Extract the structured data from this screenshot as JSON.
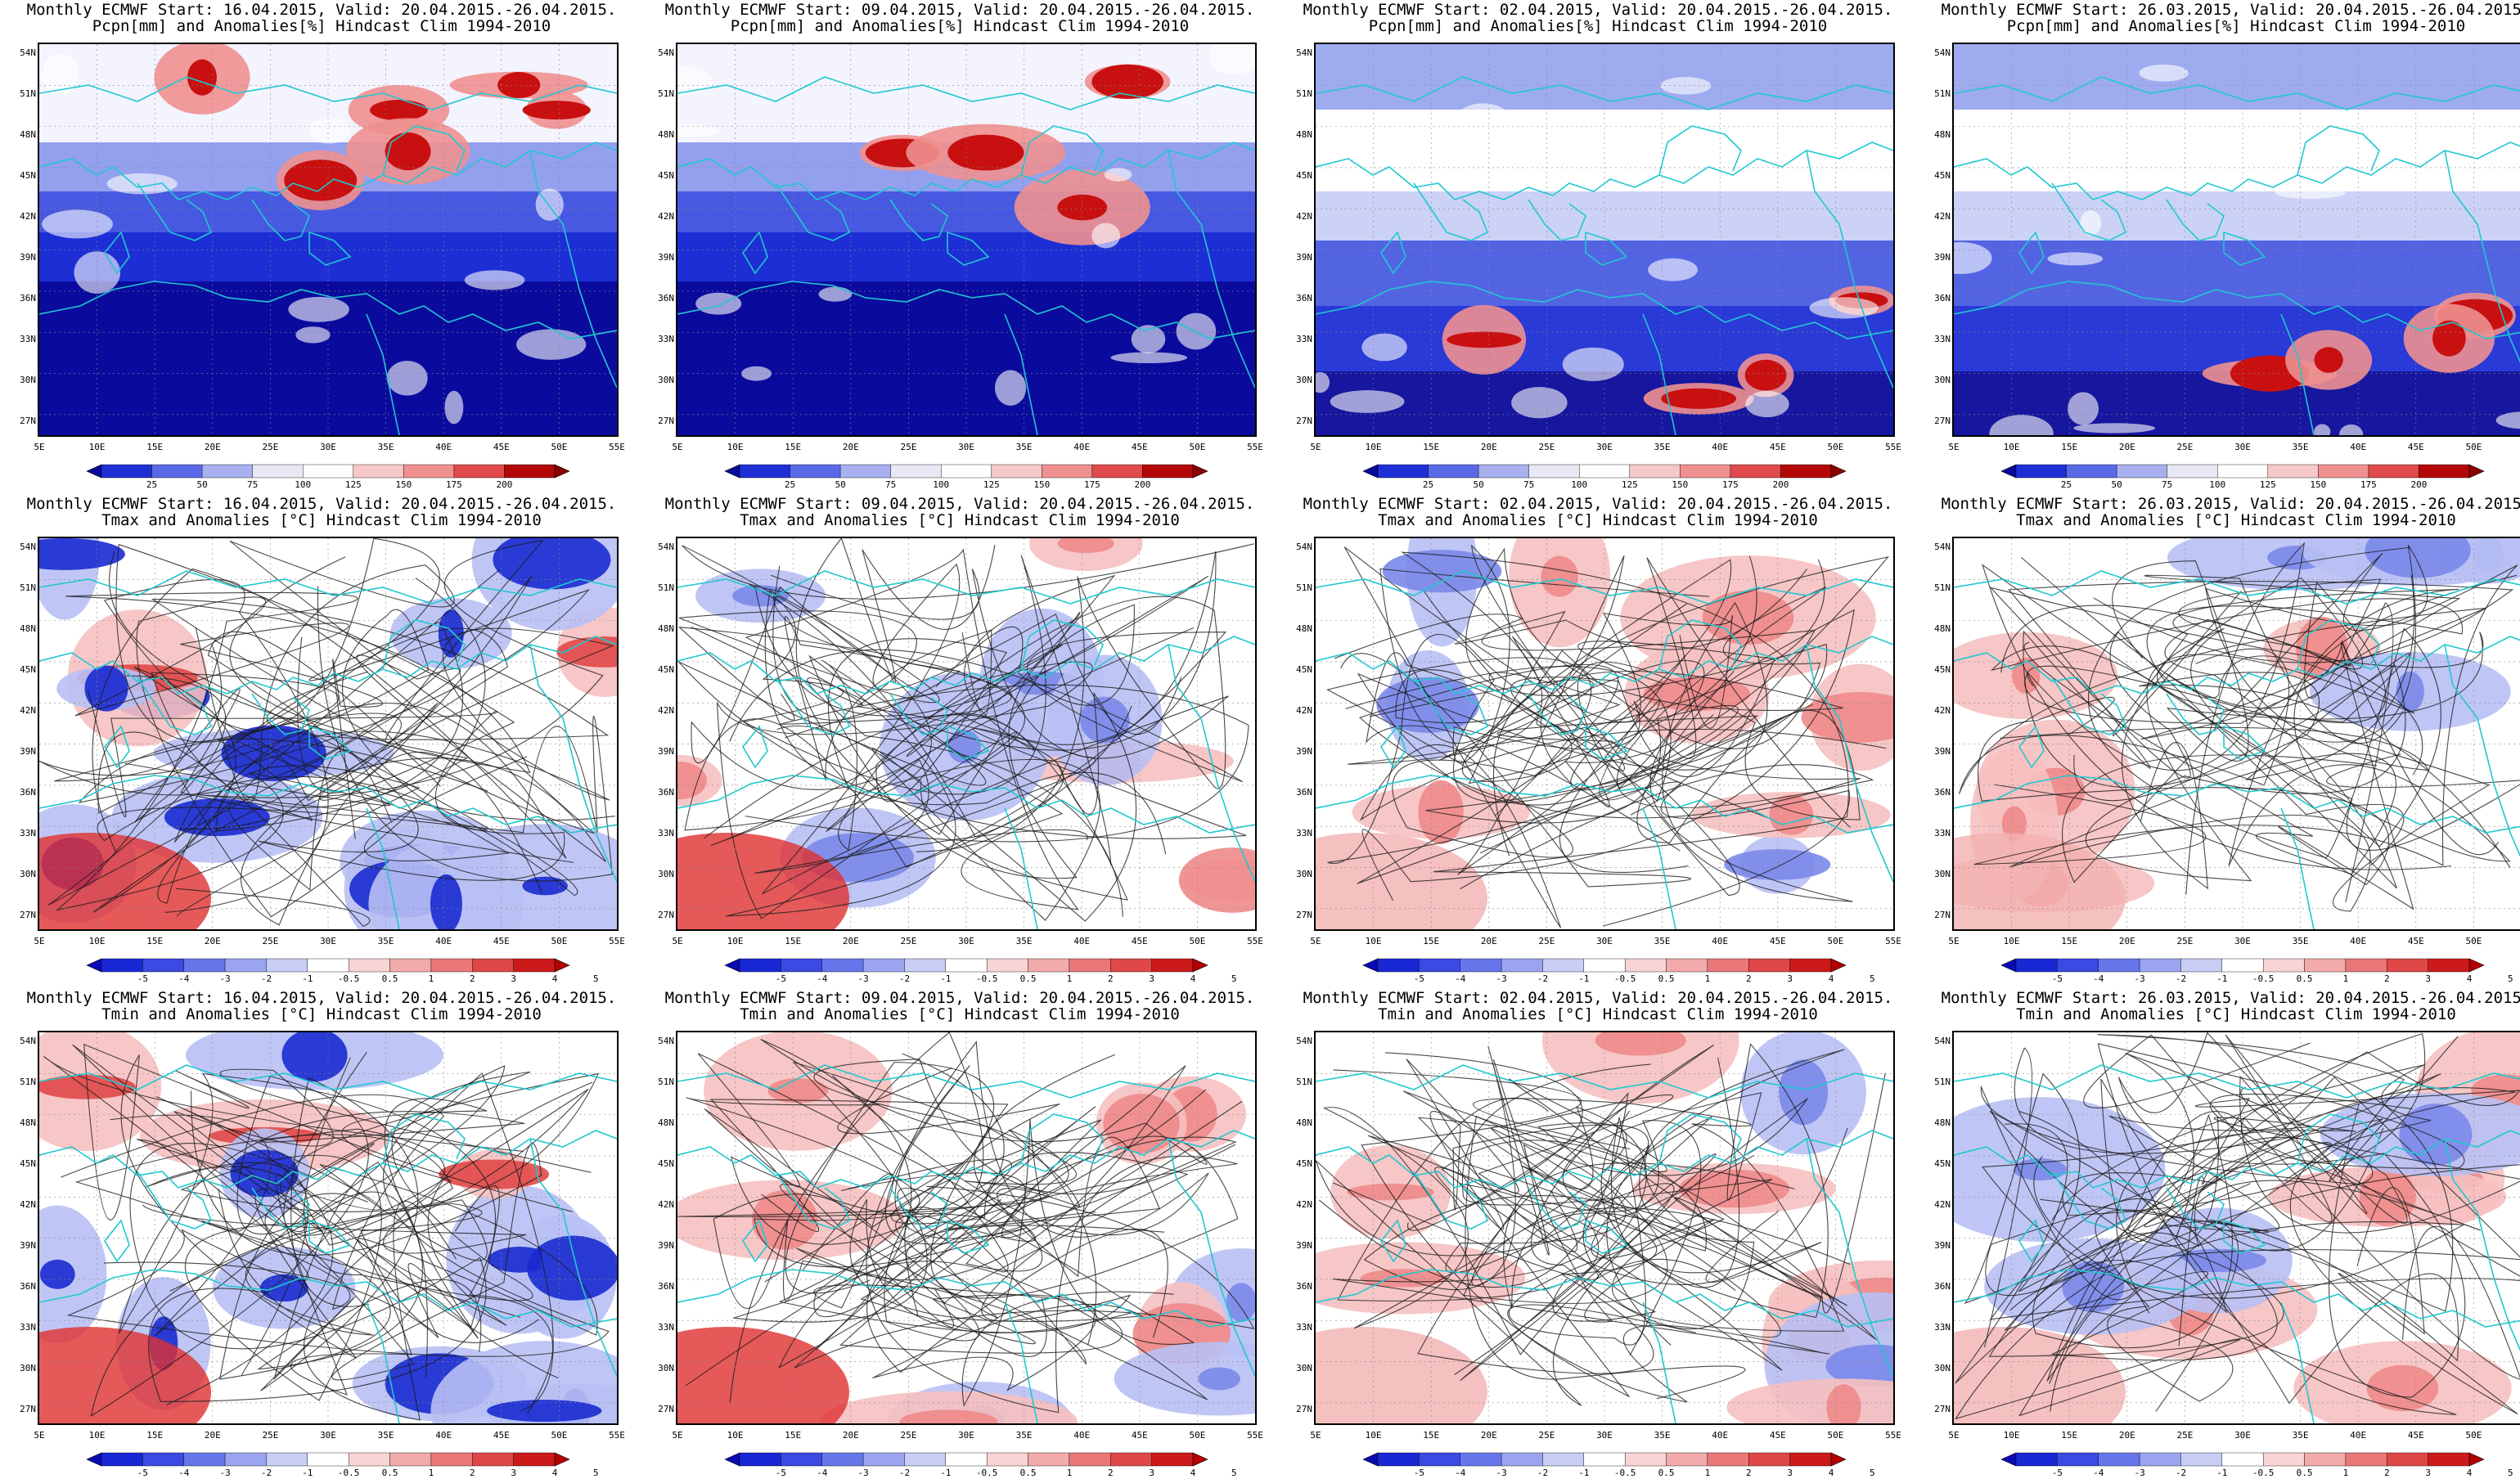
{
  "panels": [
    {
      "title1": "Monthly ECMWF Start: 16.04.2015, Valid: 20.04.2015.-26.04.2015.",
      "title2": "Pcpn[mm] and Anomalies[%] Hindcast Clim 1994-2010",
      "kind": "pcpn",
      "variant": 0
    },
    {
      "title1": "Monthly ECMWF Start: 09.04.2015, Valid: 20.04.2015.-26.04.2015.",
      "title2": "Pcpn[mm] and Anomalies[%] Hindcast Clim 1994-2010",
      "kind": "pcpn",
      "variant": 1
    },
    {
      "title1": "Monthly ECMWF Start: 02.04.2015, Valid: 20.04.2015.-26.04.2015.",
      "title2": "Pcpn[mm] and Anomalies[%] Hindcast Clim 1994-2010",
      "kind": "pcpn",
      "variant": 2
    },
    {
      "title1": "Monthly ECMWF Start: 26.03.2015, Valid: 20.04.2015.-26.04.2015.",
      "title2": "Pcpn[mm] and Anomalies[%] Hindcast Clim 1994-2010",
      "kind": "pcpn",
      "variant": 3
    },
    {
      "title1": "Monthly ECMWF Start: 16.04.2015, Valid: 20.04.2015.-26.04.2015.",
      "title2": "Tmax and Anomalies [°C] Hindcast Clim 1994-2010",
      "kind": "temp",
      "variant": 0
    },
    {
      "title1": "Monthly ECMWF Start: 09.04.2015, Valid: 20.04.2015.-26.04.2015.",
      "title2": "Tmax and Anomalies [°C] Hindcast Clim 1994-2010",
      "kind": "temp",
      "variant": 1
    },
    {
      "title1": "Monthly ECMWF Start: 02.04.2015, Valid: 20.04.2015.-26.04.2015.",
      "title2": "Tmax and Anomalies [°C] Hindcast Clim 1994-2010",
      "kind": "temp",
      "variant": 2
    },
    {
      "title1": "Monthly ECMWF Start: 26.03.2015, Valid: 20.04.2015.-26.04.2015.",
      "title2": "Tmax and Anomalies [°C] Hindcast Clim 1994-2010",
      "kind": "temp",
      "variant": 3
    },
    {
      "title1": "Monthly ECMWF Start: 16.04.2015, Valid: 20.04.2015.-26.04.2015.",
      "title2": "Tmin and Anomalies [°C] Hindcast Clim 1994-2010",
      "kind": "temp",
      "variant": 4
    },
    {
      "title1": "Monthly ECMWF Start: 09.04.2015, Valid: 20.04.2015.-26.04.2015.",
      "title2": "Tmin and Anomalies [°C] Hindcast Clim 1994-2010",
      "kind": "temp",
      "variant": 5
    },
    {
      "title1": "Monthly ECMWF Start: 02.04.2015, Valid: 20.04.2015.-26.04.2015.",
      "title2": "Tmin and Anomalies [°C] Hindcast Clim 1994-2010",
      "kind": "temp",
      "variant": 6
    },
    {
      "title1": "Monthly ECMWF Start: 26.03.2015, Valid: 20.04.2015.-26.04.2015.",
      "title2": "Tmin and Anomalies [°C] Hindcast Clim 1994-2010",
      "kind": "temp",
      "variant": 7
    }
  ],
  "lat_labels": [
    "54N",
    "51N",
    "48N",
    "45N",
    "42N",
    "39N",
    "36N",
    "33N",
    "30N",
    "27N"
  ],
  "lon_labels": [
    "5E",
    "10E",
    "15E",
    "20E",
    "25E",
    "30E",
    "35E",
    "40E",
    "45E",
    "50E",
    "55E"
  ],
  "colorbars": {
    "pcpn": {
      "labels": [
        "25",
        "50",
        "75",
        "100",
        "125",
        "150",
        "175",
        "200"
      ],
      "colors": [
        "#0a0a9a",
        "#1f2fd6",
        "#5a6ae6",
        "#a8b0f0",
        "#e8e8f4",
        "#ffffff",
        "#f6c8c8",
        "#f09090",
        "#e04a4a",
        "#b40808",
        "#8a0000"
      ]
    },
    "temp": {
      "labels": [
        "-5",
        "-4",
        "-3",
        "-2",
        "-1",
        "-0.5",
        "0.5",
        "1",
        "2",
        "3",
        "4",
        "5"
      ],
      "colors": [
        "#0a0ab4",
        "#1828d4",
        "#3a4ae2",
        "#6676ea",
        "#9aa4f0",
        "#c8ceF6",
        "#ffffff",
        "#f8d4d4",
        "#f2aaaa",
        "#ea7878",
        "#e04848",
        "#cc1a1a",
        "#b40000"
      ]
    }
  },
  "colors": {
    "ocean_blue": "#1a1ac8",
    "coastline": "#20c8d0",
    "contour": "#1a1a1a"
  }
}
